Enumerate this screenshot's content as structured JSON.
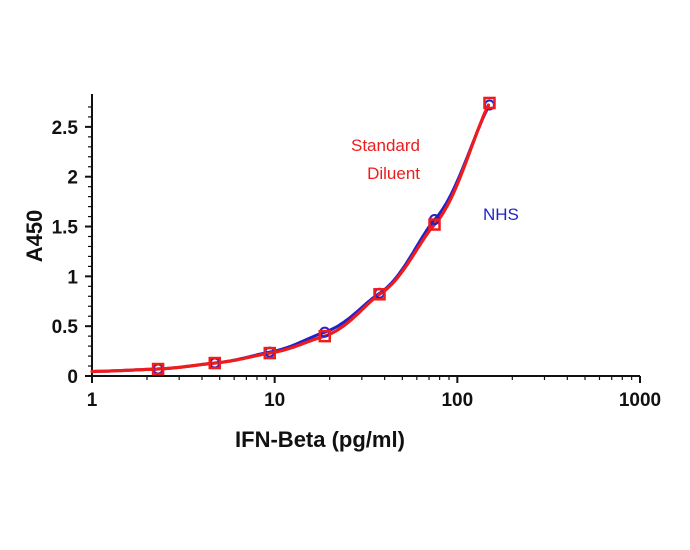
{
  "chart_data": {
    "type": "scatter",
    "title": "",
    "xlabel": "IFN-Beta (pg/ml)",
    "ylabel": "A450",
    "x_scale": "log",
    "xlim": [
      1,
      1000
    ],
    "ylim": [
      0,
      2.8
    ],
    "x_ticks": [
      1,
      10,
      100,
      1000
    ],
    "x_tick_labels": [
      "1",
      "10",
      "100",
      "1000"
    ],
    "y_ticks": [
      0,
      0.5,
      1,
      1.5,
      2,
      2.5
    ],
    "y_tick_labels": [
      "0",
      "0.5",
      "1",
      "1.5",
      "2",
      "2.5"
    ],
    "grid": false,
    "series": [
      {
        "name": "NHS",
        "color": "#2222cc",
        "marker": "circle",
        "x": [
          2.3,
          4.7,
          9.4,
          18.8,
          37.5,
          75,
          150
        ],
        "y": [
          0.07,
          0.13,
          0.24,
          0.44,
          0.83,
          1.57,
          2.72
        ]
      },
      {
        "name": "Standard Diluent",
        "color": "#ee1c1c",
        "marker": "square",
        "x": [
          2.3,
          4.7,
          9.4,
          18.8,
          37.5,
          75,
          150
        ],
        "y": [
          0.07,
          0.13,
          0.23,
          0.4,
          0.82,
          1.52,
          2.74
        ]
      }
    ],
    "annotations": [
      {
        "text": "Standard",
        "color": "#ee1c1c"
      },
      {
        "text": "Diluent",
        "color": "#ee1c1c"
      },
      {
        "text": "NHS",
        "color": "#2222cc"
      }
    ]
  }
}
